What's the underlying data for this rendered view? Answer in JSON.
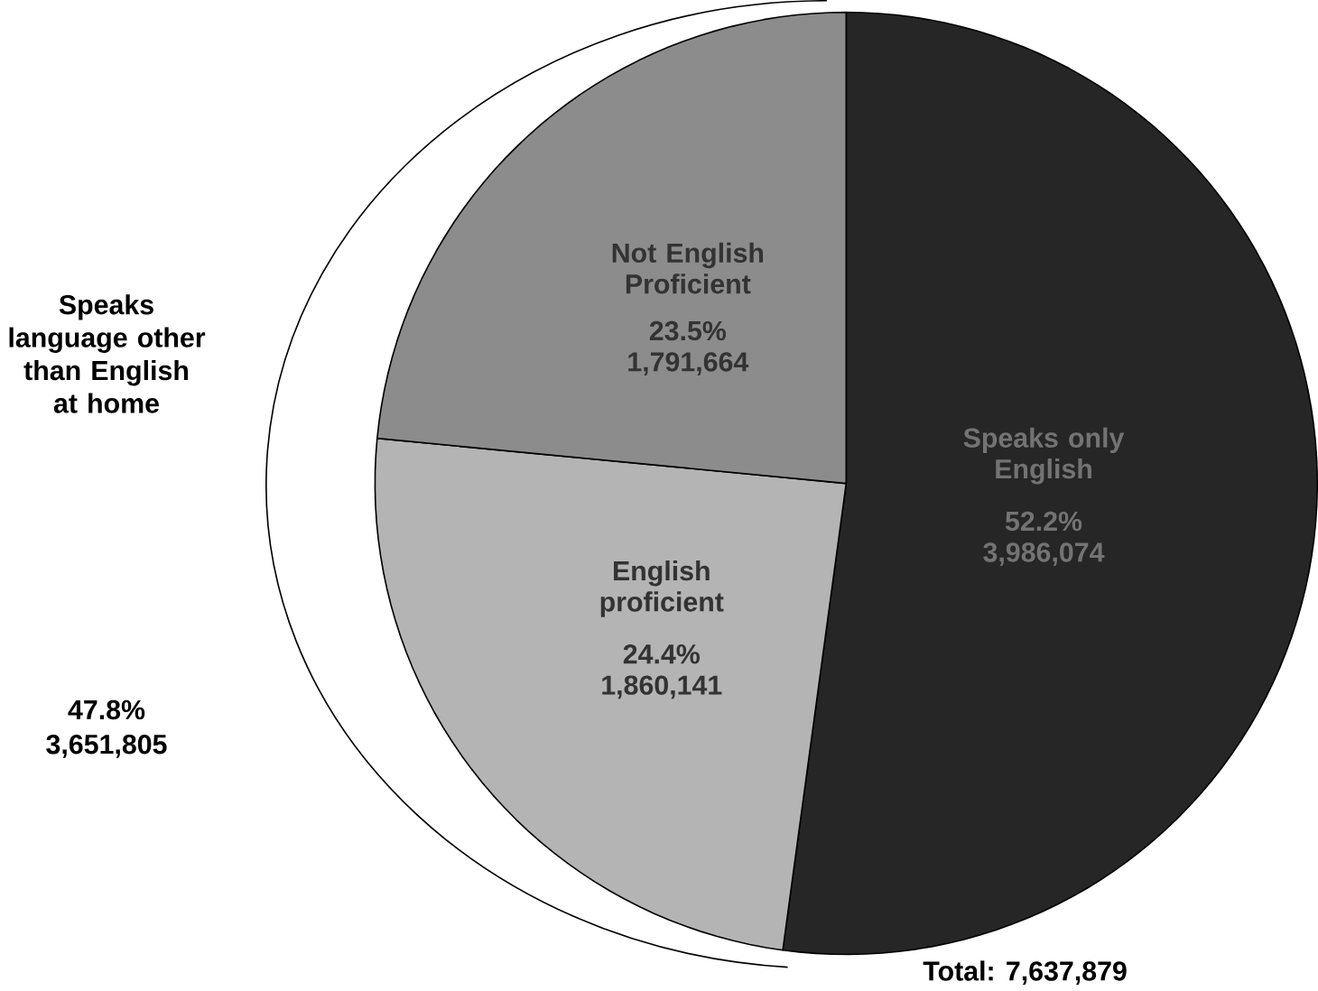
{
  "chart_data": {
    "type": "pie",
    "categories": [
      "Speaks only English",
      "English proficient",
      "Not English Proficient"
    ],
    "values": [
      52.2,
      24.4,
      23.5
    ],
    "value_labels": [
      "52.2% 3,986,074",
      "24.4% 1,860,141",
      "23.5% 1,791,664"
    ],
    "colors": [
      "#262626",
      "#b4b4b4",
      "#8c8c8c"
    ],
    "annotations": [
      "Speaks language other than English at home",
      "47.8%",
      "3,651,805",
      "Total: 7,637,879"
    ]
  }
}
